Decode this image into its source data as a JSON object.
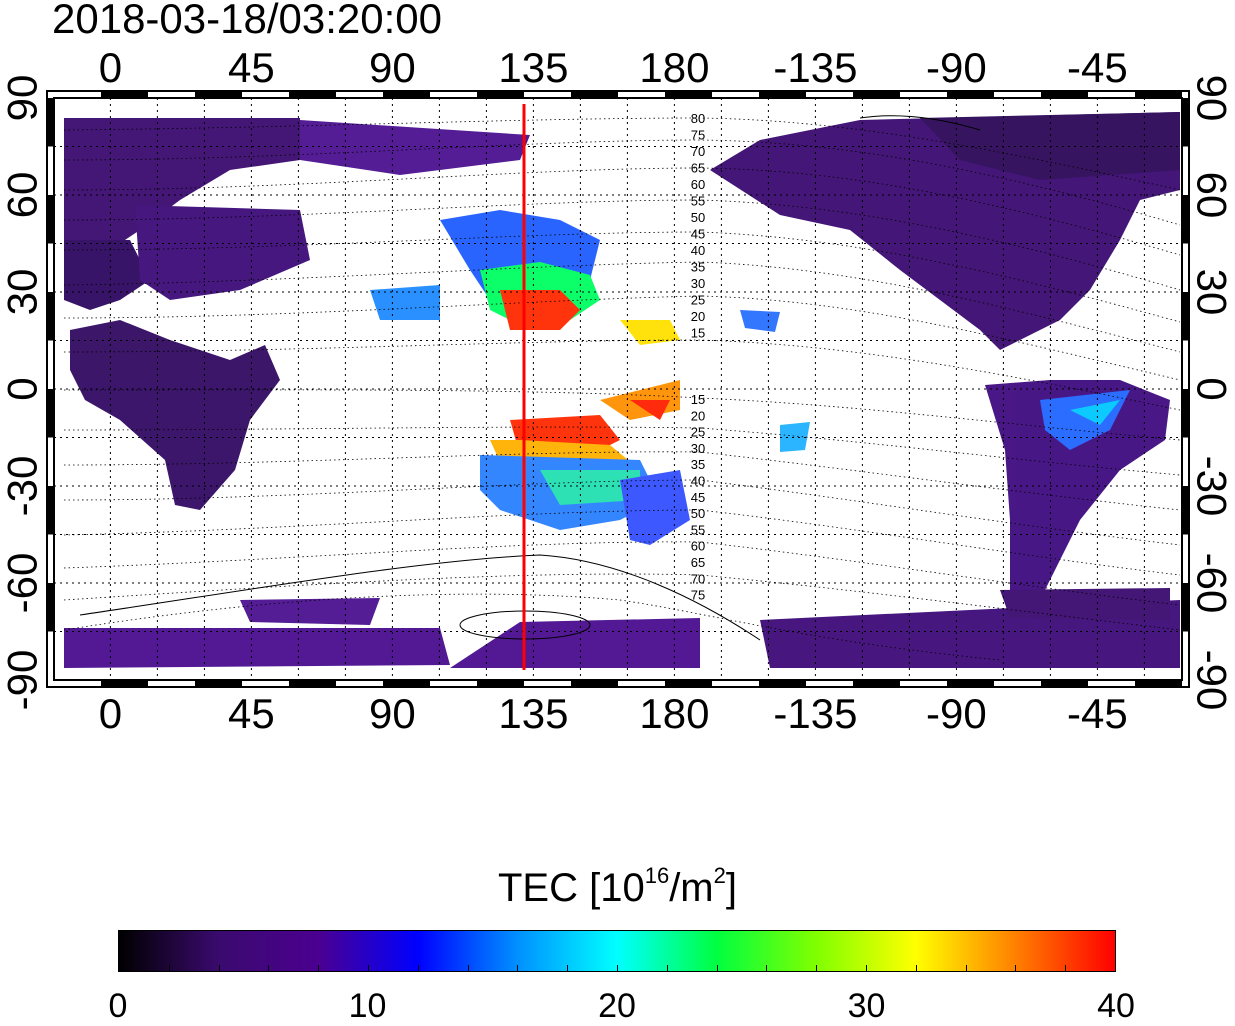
{
  "title": "2018-03-18/03:20:00",
  "map": {
    "lon_ticks_top": [
      "0",
      "45",
      "90",
      "135",
      "180",
      "-135",
      "-90",
      "-45"
    ],
    "lon_ticks_bottom": [
      "0",
      "45",
      "90",
      "135",
      "180",
      "-135",
      "-90",
      "-45"
    ],
    "lat_ticks_left": [
      "90",
      "60",
      "30",
      "0",
      "-30",
      "-60",
      "-90"
    ],
    "lat_ticks_right": [
      "90",
      "60",
      "30",
      "0",
      "-30",
      "-60",
      "-90"
    ],
    "lon_range": [
      -18,
      342
    ],
    "lat_range": [
      -90,
      90
    ],
    "grid": "dotted, every 15 degrees",
    "marker_line_longitude": 132,
    "marker_line_color": "#ff0000",
    "contour_labels_north": [
      "80",
      "75",
      "70",
      "65",
      "60",
      "55",
      "50",
      "45",
      "40",
      "35",
      "30",
      "25",
      "20",
      "15"
    ],
    "contour_labels_south": [
      "15",
      "20",
      "25",
      "30",
      "35",
      "40",
      "45",
      "50",
      "55",
      "60",
      "65",
      "70",
      "75"
    ]
  },
  "colorbar": {
    "title_main": "TEC  [10",
    "title_exp": "16",
    "title_mid": "/m",
    "title_sq": "2",
    "title_end": "]",
    "range": [
      0,
      40
    ],
    "ticks": [
      "0",
      "10",
      "20",
      "30",
      "40"
    ],
    "colors": [
      "#000000",
      "#3a0a6e",
      "#4b0090",
      "#0000ff",
      "#0090ff",
      "#00ffff",
      "#00ff40",
      "#80ff00",
      "#ffff00",
      "#ff8000",
      "#ff0000"
    ]
  }
}
